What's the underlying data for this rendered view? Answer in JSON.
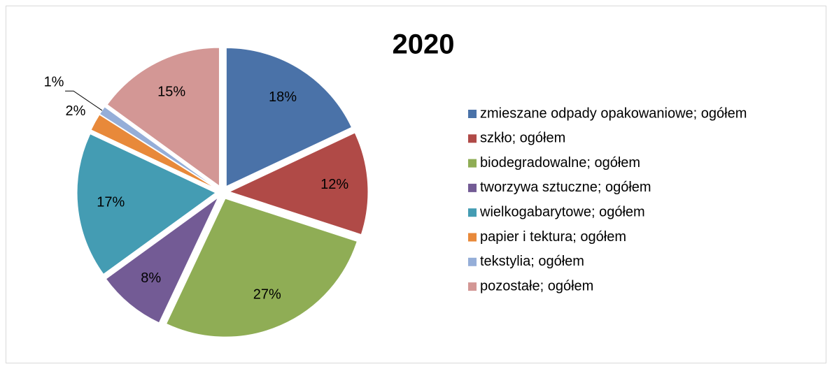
{
  "chart_data": {
    "type": "pie",
    "title": "2020",
    "categories": [
      "zmieszane odpady opakowaniowe; ogółem",
      "szkło; ogółem",
      "biodegradowalne; ogółem",
      "tworzywa sztuczne; ogółem",
      "wielkogabarytowe; ogółem",
      "papier i tektura; ogółem",
      "tekstylia; ogółem",
      "pozostałe; ogółem"
    ],
    "values": [
      18,
      12,
      27,
      8,
      17,
      2,
      1,
      15
    ],
    "value_labels": [
      "18%",
      "12%",
      "27%",
      "8%",
      "17%",
      "2%",
      "1%",
      "15%"
    ],
    "colors": [
      "#4a72a8",
      "#b04a47",
      "#8fad55",
      "#735b95",
      "#449cb3",
      "#e8893a",
      "#95aed8",
      "#d39795"
    ],
    "legend": "right"
  }
}
